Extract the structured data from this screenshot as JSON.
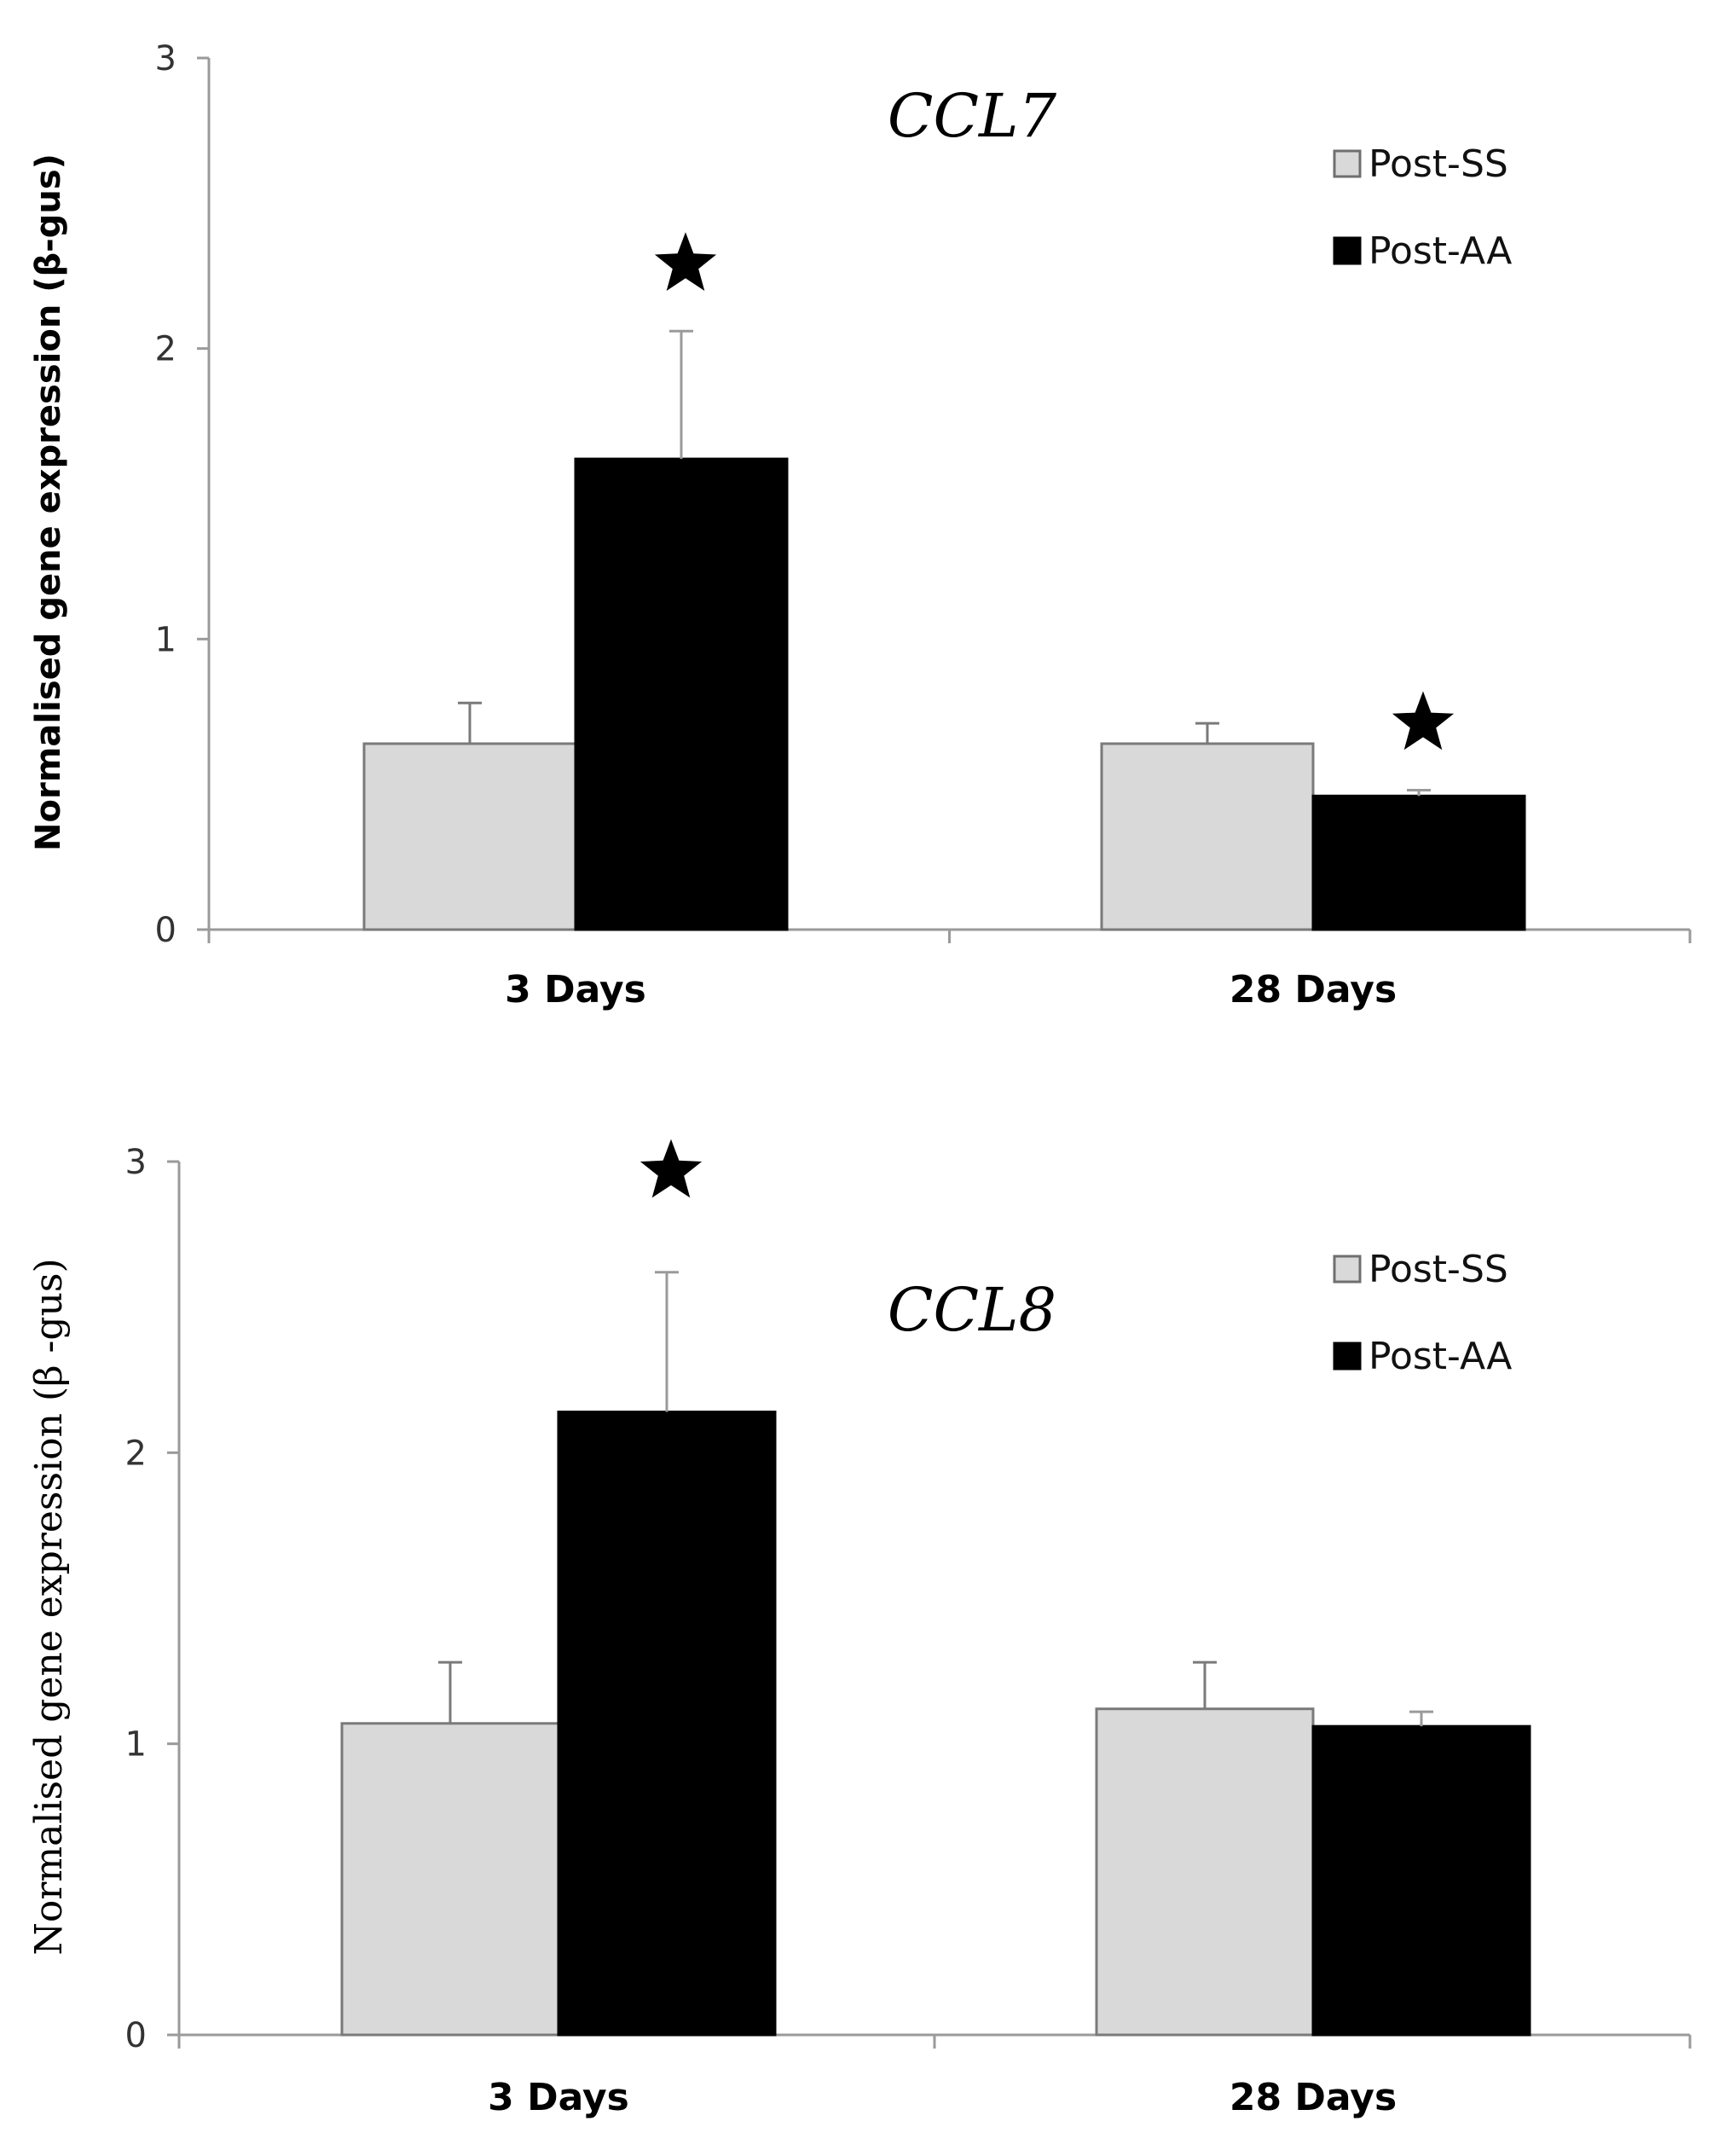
{
  "chart_data": [
    {
      "type": "bar",
      "title": "CCL7",
      "ylabel": "Normalised gene expression (β-gus)",
      "xlabel": "",
      "ylim": [
        0,
        3
      ],
      "yticks": [
        "0",
        "1",
        "2",
        "3"
      ],
      "categories": [
        "3 Days",
        "28 Days"
      ],
      "series": [
        {
          "name": "Post-SS",
          "color": "#d9d9d9",
          "values": [
            0.64,
            0.64
          ],
          "errors": [
            0.14,
            0.07
          ]
        },
        {
          "name": "Post-AA",
          "color": "#000000",
          "values": [
            1.62,
            0.46
          ],
          "errors": [
            0.44,
            0.02
          ]
        }
      ],
      "significance": [
        {
          "category": "3 Days",
          "series": "Post-AA",
          "marker": "★"
        },
        {
          "category": "28 Days",
          "series": "Post-AA",
          "marker": "★"
        }
      ],
      "legend_position": "top-right",
      "grid": false
    },
    {
      "type": "bar",
      "title": "CCL8",
      "ylabel": "Normalised gene expression (β -gus)",
      "xlabel": "",
      "ylim": [
        0,
        3
      ],
      "yticks": [
        "0",
        "1",
        "2",
        "3"
      ],
      "categories": [
        "3 Days",
        "28 Days"
      ],
      "series": [
        {
          "name": "Post-SS",
          "color": "#d9d9d9",
          "values": [
            1.07,
            1.12
          ],
          "errors": [
            0.21,
            0.16
          ]
        },
        {
          "name": "Post-AA",
          "color": "#000000",
          "values": [
            2.14,
            1.06
          ],
          "errors": [
            0.48,
            0.05
          ]
        }
      ],
      "significance": [
        {
          "category": "3 Days",
          "series": "Post-AA",
          "marker": "★"
        }
      ],
      "legend_position": "top-right",
      "grid": false
    }
  ]
}
